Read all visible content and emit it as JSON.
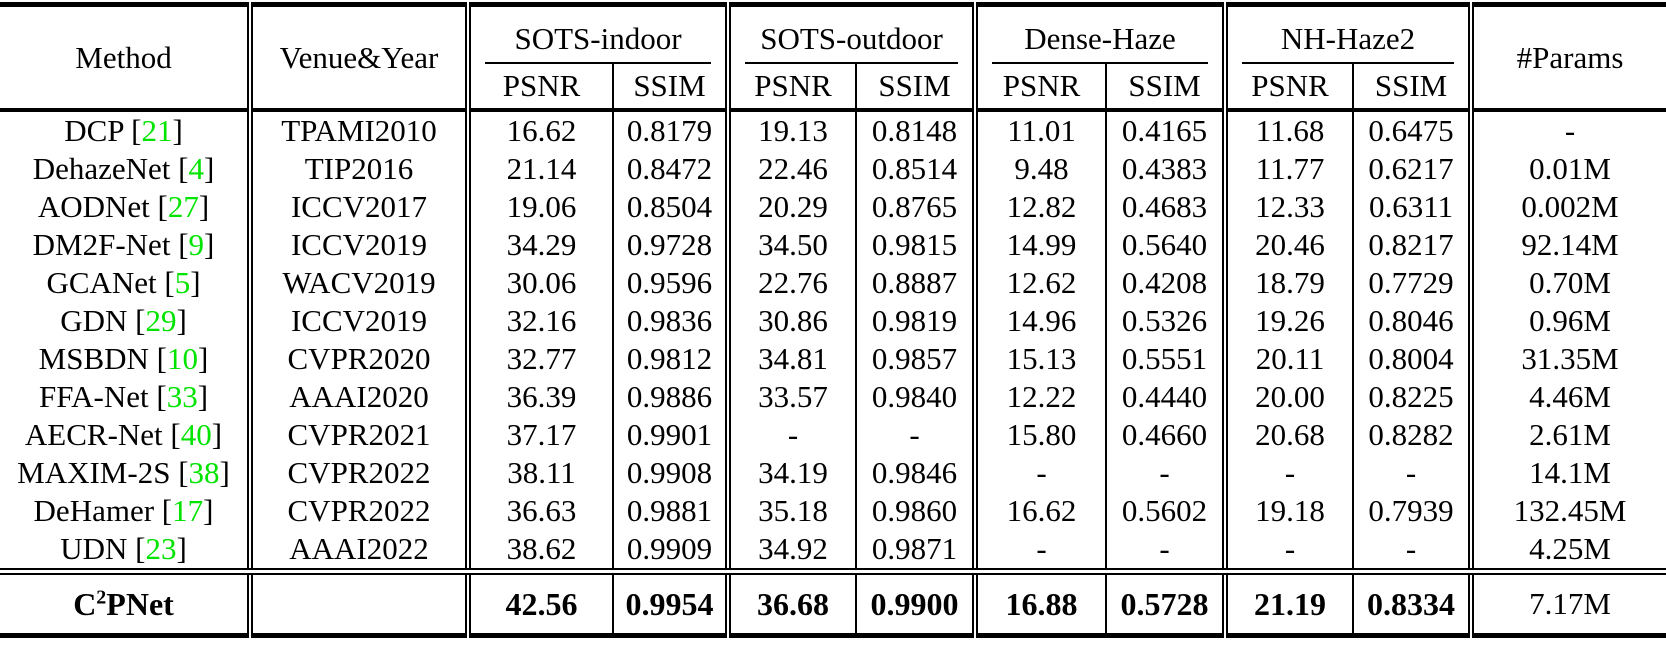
{
  "colors": {
    "citation_green": "#00e400",
    "text": "#000000",
    "rule": "#000000",
    "background": "#ffffff"
  },
  "table": {
    "headers": {
      "method": "Method",
      "venue": "Venue&Year",
      "groups": [
        "SOTS-indoor",
        "SOTS-outdoor",
        "Dense-Haze",
        "NH-Haze2"
      ],
      "psnr": "PSNR",
      "ssim": "SSIM",
      "params": "#Params"
    },
    "rows": [
      {
        "method": "DCP",
        "cite": "21",
        "venue": "TPAMI2010",
        "values": [
          "16.62",
          "0.8179",
          "19.13",
          "0.8148",
          "11.01",
          "0.4165",
          "11.68",
          "0.6475"
        ],
        "params": "-"
      },
      {
        "method": "DehazeNet",
        "cite": "4",
        "venue": "TIP2016",
        "values": [
          "21.14",
          "0.8472",
          "22.46",
          "0.8514",
          "9.48",
          "0.4383",
          "11.77",
          "0.6217"
        ],
        "params": "0.01M"
      },
      {
        "method": "AODNet",
        "cite": "27",
        "venue": "ICCV2017",
        "values": [
          "19.06",
          "0.8504",
          "20.29",
          "0.8765",
          "12.82",
          "0.4683",
          "12.33",
          "0.6311"
        ],
        "params": "0.002M"
      },
      {
        "method": "DM2F-Net",
        "cite": "9",
        "venue": "ICCV2019",
        "values": [
          "34.29",
          "0.9728",
          "34.50",
          "0.9815",
          "14.99",
          "0.5640",
          "20.46",
          "0.8217"
        ],
        "params": "92.14M"
      },
      {
        "method": "GCANet",
        "cite": "5",
        "venue": "WACV2019",
        "values": [
          "30.06",
          "0.9596",
          "22.76",
          "0.8887",
          "12.62",
          "0.4208",
          "18.79",
          "0.7729"
        ],
        "params": "0.70M"
      },
      {
        "method": "GDN",
        "cite": "29",
        "venue": "ICCV2019",
        "values": [
          "32.16",
          "0.9836",
          "30.86",
          "0.9819",
          "14.96",
          "0.5326",
          "19.26",
          "0.8046"
        ],
        "params": "0.96M"
      },
      {
        "method": "MSBDN",
        "cite": "10",
        "venue": "CVPR2020",
        "values": [
          "32.77",
          "0.9812",
          "34.81",
          "0.9857",
          "15.13",
          "0.5551",
          "20.11",
          "0.8004"
        ],
        "params": "31.35M"
      },
      {
        "method": "FFA-Net",
        "cite": "33",
        "venue": "AAAI2020",
        "values": [
          "36.39",
          "0.9886",
          "33.57",
          "0.9840",
          "12.22",
          "0.4440",
          "20.00",
          "0.8225"
        ],
        "params": "4.46M"
      },
      {
        "method": "AECR-Net",
        "cite": "40",
        "venue": "CVPR2021",
        "values": [
          "37.17",
          "0.9901",
          "-",
          "-",
          "15.80",
          "0.4660",
          "20.68",
          "0.8282"
        ],
        "params": "2.61M"
      },
      {
        "method": "MAXIM-2S",
        "cite": "38",
        "venue": "CVPR2022",
        "values": [
          "38.11",
          "0.9908",
          "34.19",
          "0.9846",
          "-",
          "-",
          "-",
          "-"
        ],
        "params": "14.1M"
      },
      {
        "method": "DeHamer",
        "cite": "17",
        "venue": "CVPR2022",
        "values": [
          "36.63",
          "0.9881",
          "35.18",
          "0.9860",
          "16.62",
          "0.5602",
          "19.18",
          "0.7939"
        ],
        "params": "132.45M"
      },
      {
        "method": "UDN",
        "cite": "23",
        "venue": "AAAI2022",
        "values": [
          "38.62",
          "0.9909",
          "34.92",
          "0.9871",
          "-",
          "-",
          "-",
          "-"
        ],
        "params": "4.25M"
      }
    ],
    "final_row": {
      "method_base": "C",
      "method_sup": "2",
      "method_rest": "PNet",
      "venue": "",
      "values": [
        "42.56",
        "0.9954",
        "36.68",
        "0.9900",
        "16.88",
        "0.5728",
        "21.19",
        "0.8334"
      ],
      "params": "7.17M"
    }
  }
}
